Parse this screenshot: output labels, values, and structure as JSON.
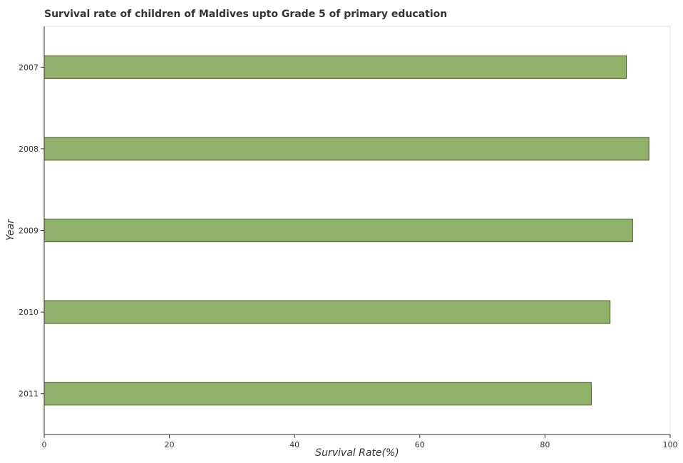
{
  "chart_data": {
    "type": "bar",
    "orientation": "horizontal",
    "title": "Survival rate of children of Maldives upto Grade 5 of primary education",
    "xlabel": "Survival Rate(%)",
    "ylabel": "Year",
    "categories": [
      "2007",
      "2008",
      "2009",
      "2010",
      "2011"
    ],
    "series": [
      {
        "values": [
          93.0,
          96.6,
          94.0,
          90.4,
          87.4
        ]
      }
    ],
    "xlim": [
      0,
      100
    ],
    "xticks": [
      "0",
      "20",
      "40",
      "60",
      "80",
      "100"
    ],
    "grid": false,
    "legend": "none",
    "colors": {
      "bar_fill": "#8fb16a",
      "bar_stroke": "#4a5a30",
      "frame": "#dddddd",
      "axis": "#333333"
    }
  }
}
